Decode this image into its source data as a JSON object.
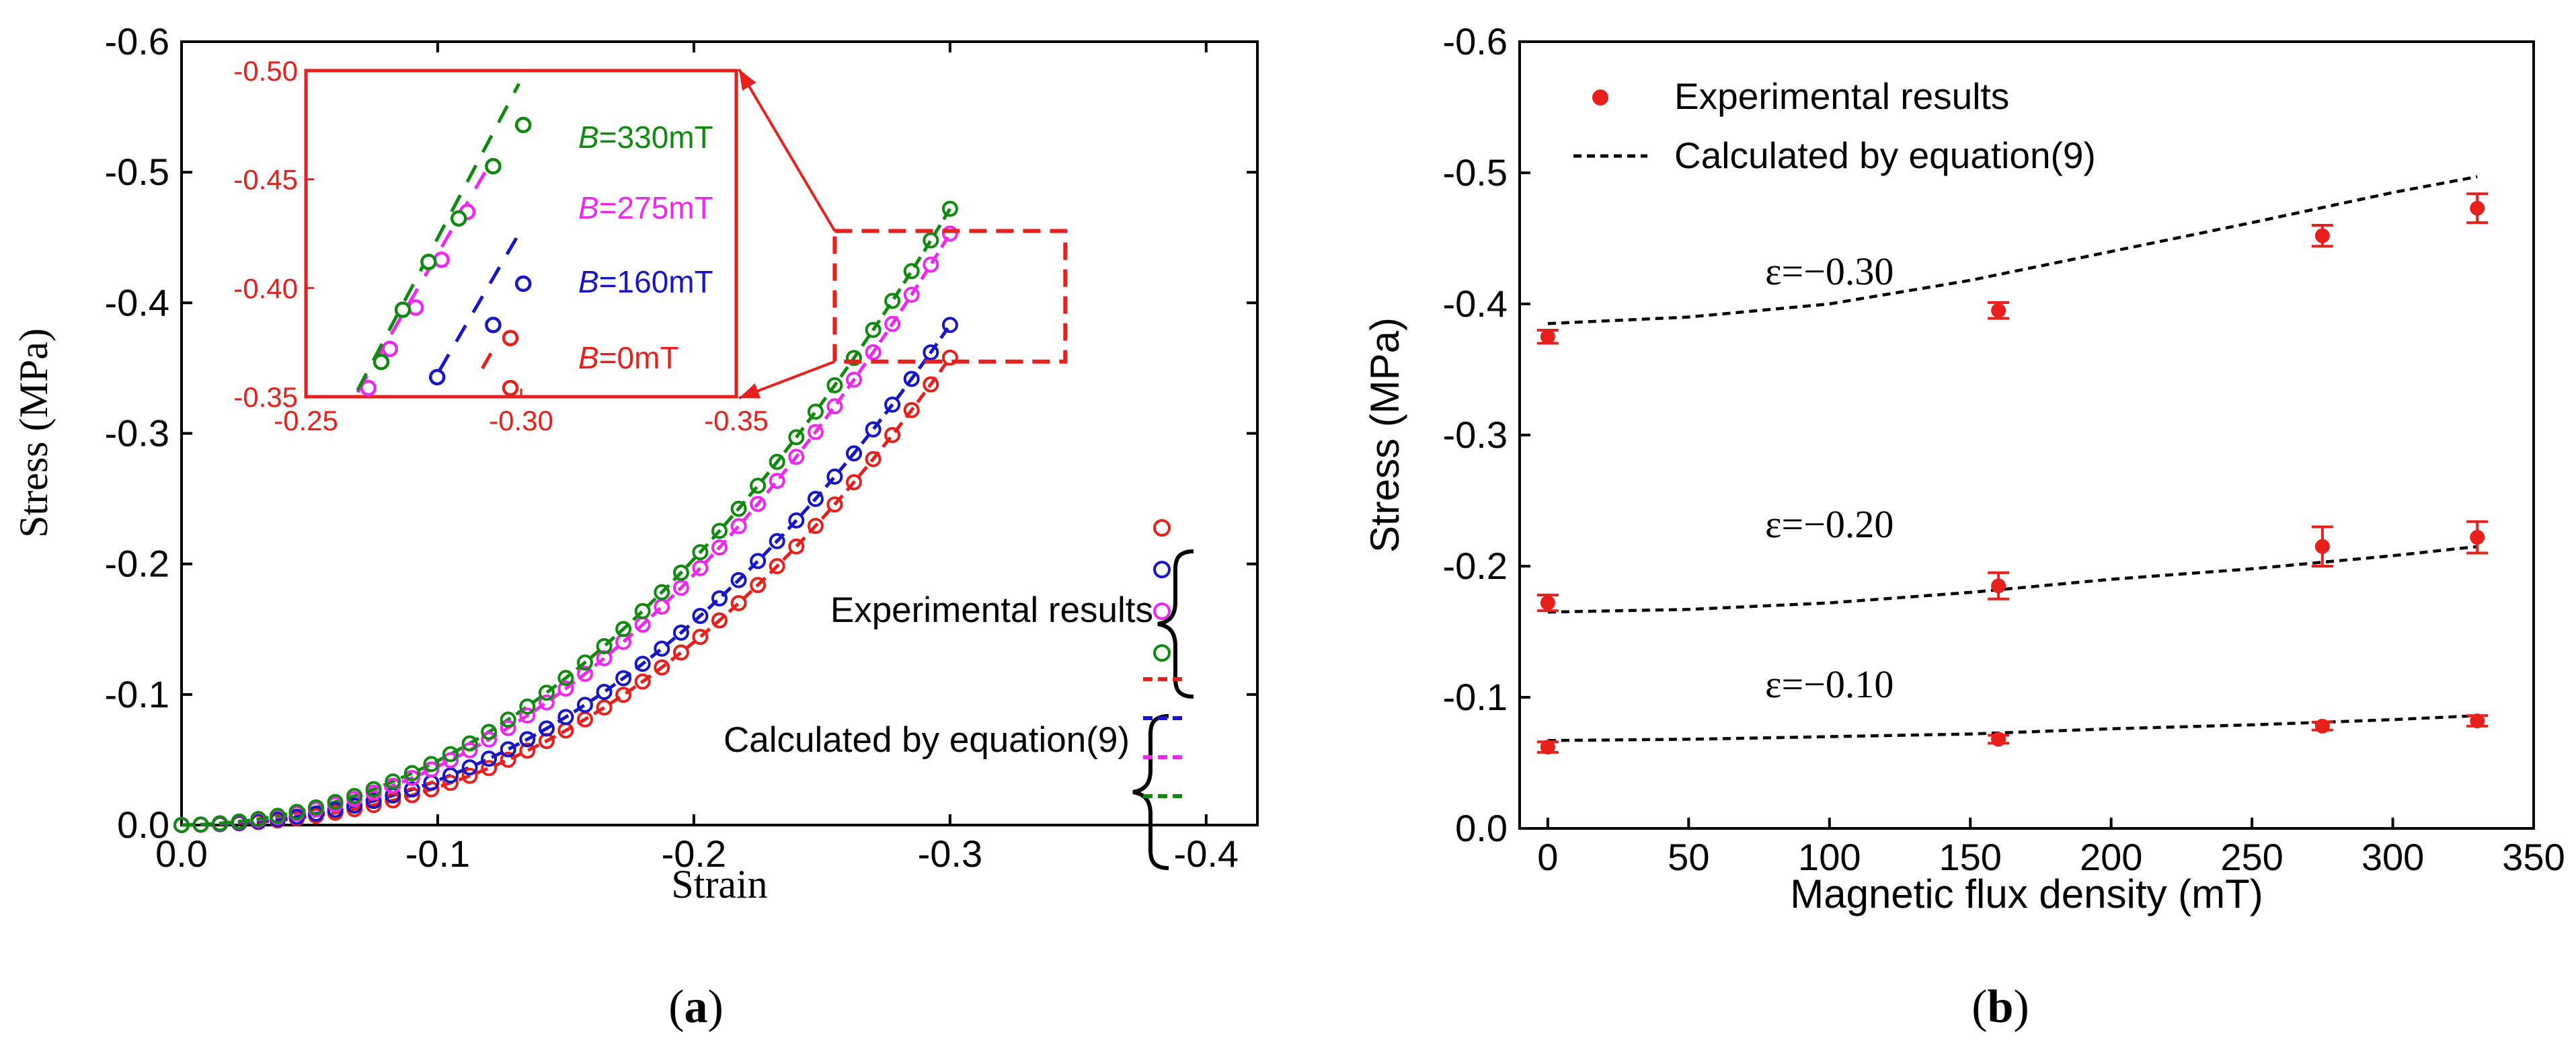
{
  "colors": {
    "red": "#e8201c",
    "blue": "#1616c8",
    "magenta": "#ee28ee",
    "green": "#0f8a0f",
    "black": "#000000"
  },
  "chart_data": [
    {
      "id": "a",
      "type": "scatter",
      "panel_label": "(a)",
      "panel_letter": "a",
      "xlabel": "Strain",
      "ylabel": "Stress (MPa)",
      "xlim": [
        0.0,
        -0.42
      ],
      "ylim": [
        0.0,
        -0.6
      ],
      "xticks": [
        0.0,
        -0.1,
        -0.2,
        -0.3,
        -0.4
      ],
      "xtick_labels": [
        "0.0",
        "-0.1",
        "-0.2",
        "-0.3",
        "-0.4"
      ],
      "yticks": [
        0.0,
        -0.1,
        -0.2,
        -0.3,
        -0.4,
        -0.5,
        -0.6
      ],
      "ytick_labels": [
        "0.0",
        "-0.1",
        "-0.2",
        "-0.3",
        "-0.4",
        "-0.5",
        "-0.6"
      ],
      "series": [
        {
          "name": "B=0mT",
          "b_prefix": "B",
          "b_text": "=0mT",
          "color_key": "red",
          "x_end": -0.3,
          "y_end": -0.358,
          "curve_power": 2.35
        },
        {
          "name": "B=160mT",
          "b_prefix": "B",
          "b_text": "=160mT",
          "color_key": "blue",
          "x_end": -0.3,
          "y_end": -0.383,
          "curve_power": 2.25
        },
        {
          "name": "B=275mT",
          "b_prefix": "B",
          "b_text": "=275mT",
          "color_key": "magenta",
          "x_end": -0.3,
          "y_end": -0.453,
          "curve_power": 2.15
        },
        {
          "name": "B=330mT",
          "b_prefix": "B",
          "b_text": "=330mT",
          "color_key": "green",
          "x_end": -0.3,
          "y_end": -0.472,
          "curve_power": 2.1
        }
      ],
      "legend": {
        "experimental_label": "Experimental results",
        "calculated_label": "Calculated by equation(9)"
      },
      "inset": {
        "xlim": [
          -0.25,
          -0.35
        ],
        "ylim": [
          -0.35,
          -0.5
        ],
        "xticks": [
          -0.25,
          -0.3,
          -0.35
        ],
        "xtick_labels": [
          "-0.25",
          "-0.30",
          "-0.35"
        ],
        "yticks": [
          -0.35,
          -0.4,
          -0.45,
          -0.5
        ],
        "ytick_labels": [
          "-0.35",
          "-0.40",
          "-0.45",
          "-0.50"
        ],
        "zoom_region": {
          "x": [
            -0.255,
            -0.345
          ],
          "y": [
            -0.355,
            -0.455
          ]
        }
      }
    },
    {
      "id": "b",
      "type": "scatter",
      "panel_label": "(b)",
      "panel_letter": "b",
      "xlabel": "Magnetic flux density (mT)",
      "ylabel": "Stress (MPa)",
      "xlim": [
        -10,
        350
      ],
      "ylim": [
        0.0,
        -0.6
      ],
      "xticks": [
        0,
        50,
        100,
        150,
        200,
        250,
        300,
        350
      ],
      "xtick_labels": [
        "0",
        "50",
        "100",
        "150",
        "200",
        "250",
        "300",
        "350"
      ],
      "yticks": [
        0.0,
        -0.1,
        -0.2,
        -0.3,
        -0.4,
        -0.5,
        -0.6
      ],
      "ytick_labels": [
        "0.0",
        "-0.1",
        "-0.2",
        "-0.3",
        "-0.4",
        "-0.5",
        "-0.6"
      ],
      "legend": {
        "experimental_label": "Experimental results",
        "calculated_label": "Calculated by equation(9)"
      },
      "series": [
        {
          "name": "ε=−0.30",
          "label_text": "ε=−0.30",
          "label_at": [
            100,
            -0.415
          ],
          "experimental": {
            "x": [
              0,
              160,
              275,
              330
            ],
            "y": [
              -0.375,
              -0.395,
              -0.452,
              -0.473
            ],
            "err": [
              0.005,
              0.006,
              0.008,
              0.011
            ]
          },
          "calculated": {
            "x": [
              0,
              50,
              100,
              150,
              200,
              250,
              300,
              330
            ],
            "y": [
              -0.385,
              -0.39,
              -0.4,
              -0.418,
              -0.44,
              -0.462,
              -0.485,
              -0.497
            ]
          }
        },
        {
          "name": "ε=−0.20",
          "label_text": "ε=−0.20",
          "label_at": [
            100,
            -0.222
          ],
          "experimental": {
            "x": [
              0,
              160,
              275,
              330
            ],
            "y": [
              -0.172,
              -0.185,
              -0.215,
              -0.222
            ],
            "err": [
              0.006,
              0.01,
              0.015,
              0.012
            ]
          },
          "calculated": {
            "x": [
              0,
              50,
              100,
              150,
              200,
              250,
              300,
              330
            ],
            "y": [
              -0.165,
              -0.167,
              -0.172,
              -0.18,
              -0.19,
              -0.198,
              -0.208,
              -0.215
            ]
          }
        },
        {
          "name": "ε=−0.10",
          "label_text": "ε=−0.10",
          "label_at": [
            100,
            -0.1
          ],
          "experimental": {
            "x": [
              0,
              160,
              275,
              330
            ],
            "y": [
              -0.062,
              -0.068,
              -0.078,
              -0.082
            ],
            "err": [
              0.004,
              0.003,
              0.003,
              0.004
            ]
          },
          "calculated": {
            "x": [
              0,
              50,
              100,
              150,
              200,
              250,
              300,
              330
            ],
            "y": [
              -0.067,
              -0.068,
              -0.07,
              -0.072,
              -0.076,
              -0.079,
              -0.083,
              -0.086
            ]
          }
        }
      ]
    }
  ]
}
